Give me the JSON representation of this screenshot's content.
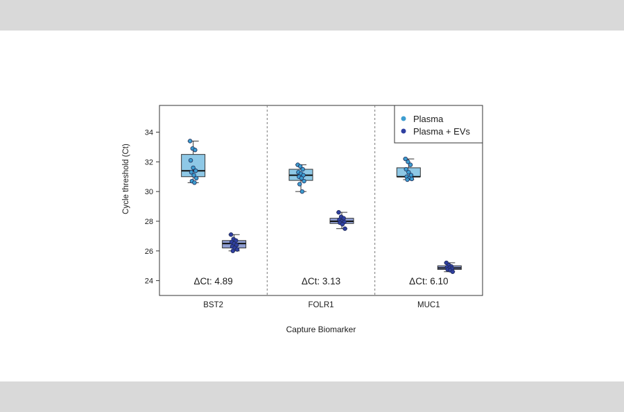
{
  "colors": {
    "band": "#d9d9d9",
    "plasma_fill": "#8ec8e6",
    "plasma_point": "#3d9dd0",
    "plasma_ev_fill": "#8f9ed2",
    "plasma_ev_point": "#2f3fa0"
  },
  "chart_data": {
    "type": "box",
    "xlabel": "Capture Biomarker",
    "ylabel": "Cycle threshold (Ct)",
    "ylim": [
      23,
      35.8
    ],
    "yticks": [
      24,
      26,
      28,
      30,
      32,
      34
    ],
    "grid": false,
    "legend_position": "top-right",
    "categories": [
      "BST2",
      "FOLR1",
      "MUC1"
    ],
    "annotations": [
      "ΔCt: 4.89",
      "ΔCt: 3.13",
      "ΔCt: 6.10"
    ],
    "series": [
      {
        "name": "Plasma",
        "boxes": [
          {
            "min": 30.6,
            "q1": 31.0,
            "median": 31.4,
            "q3": 32.5,
            "max": 33.4,
            "points": [
              33.4,
              32.9,
              32.8,
              32.1,
              31.6,
              31.4,
              31.3,
              31.1,
              30.9,
              30.7,
              30.6
            ]
          },
          {
            "min": 30.0,
            "q1": 30.75,
            "median": 31.1,
            "q3": 31.5,
            "max": 31.8,
            "points": [
              31.8,
              31.7,
              31.5,
              31.3,
              31.2,
              31.1,
              31.0,
              30.9,
              30.7,
              30.5,
              30.0
            ]
          },
          {
            "min": 30.8,
            "q1": 31.0,
            "median": 31.0,
            "q3": 31.6,
            "max": 32.2,
            "points": [
              32.2,
              32.0,
              31.8,
              31.5,
              31.3,
              31.1,
              31.0,
              30.9,
              30.85,
              30.8
            ]
          }
        ]
      },
      {
        "name": "Plasma + EVs",
        "boxes": [
          {
            "min": 26.0,
            "q1": 26.2,
            "median": 26.5,
            "q3": 26.7,
            "max": 27.1,
            "points": [
              27.1,
              26.8,
              26.7,
              26.6,
              26.5,
              26.4,
              26.3,
              26.2,
              26.1,
              26.0
            ]
          },
          {
            "min": 27.5,
            "q1": 27.85,
            "median": 28.0,
            "q3": 28.2,
            "max": 28.6,
            "points": [
              28.6,
              28.3,
              28.2,
              28.1,
              28.0,
              27.95,
              27.9,
              27.8,
              27.5
            ]
          },
          {
            "min": 24.6,
            "q1": 24.75,
            "median": 24.85,
            "q3": 25.0,
            "max": 25.2,
            "points": [
              25.2,
              25.05,
              24.95,
              24.9,
              24.85,
              24.8,
              24.75,
              24.7,
              24.6
            ]
          }
        ]
      }
    ]
  }
}
